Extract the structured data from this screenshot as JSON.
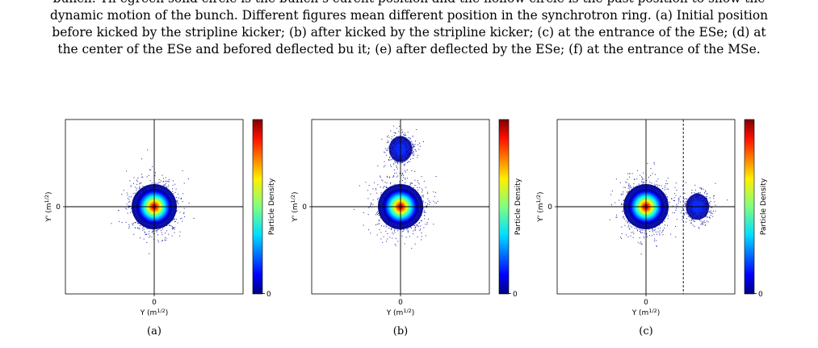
{
  "caption": {
    "lines": [
      "bunch. Th egreen solid circle is the bunch’s curent position and the hollow circle is the past position to show the",
      "dynamic motion of the bunch. Different figures mean different position in the synchrotron ring. (a) Initial position",
      "before kicked by the stripline kicker; (b) after kicked by the stripline kicker; (c) at the entrance of the ESe; (d) at",
      "the center of the ESe and befored deflected bu it; (e) after deflected by the ESe; (f) at the entrance of the MSe."
    ]
  },
  "panels": [
    {
      "label": "(a)",
      "x_label": "Y (m",
      "y_label": "Y' (m",
      "unit_sup": "1/2",
      "x_tick": "0",
      "y_tick": "0",
      "colorbar_label": "Particle Density",
      "colorbar_tick": "0",
      "bunches": [
        {
          "x": 0.0,
          "y": 0.0,
          "spread": 1.0
        }
      ],
      "septum_line": null
    },
    {
      "label": "(b)",
      "x_label": "Y (m",
      "y_label": "Y' (m",
      "unit_sup": "1/2",
      "x_tick": "0",
      "y_tick": "0",
      "colorbar_label": "Particle Density",
      "colorbar_tick": "0",
      "bunches": [
        {
          "x": 0.0,
          "y": 0.0,
          "spread": 1.0
        },
        {
          "x": 0.0,
          "y": 0.66,
          "spread": 0.55
        }
      ],
      "septum_line": null
    },
    {
      "label": "(c)",
      "x_label": "Y (m",
      "y_label": "Y' (m",
      "unit_sup": "1/2",
      "x_tick": "0",
      "y_tick": "0",
      "colorbar_label": "Particle Density",
      "colorbar_tick": "0",
      "bunches": [
        {
          "x": 0.0,
          "y": 0.0,
          "spread": 1.0
        },
        {
          "x": 0.58,
          "y": 0.0,
          "spread": 0.55
        }
      ],
      "septum_line": 0.42
    }
  ],
  "colors": {
    "colormap": [
      "#00007f",
      "#0000ff",
      "#007fff",
      "#00ffff",
      "#7fff7f",
      "#ffff00",
      "#ff7f00",
      "#ff0000",
      "#7f0000"
    ],
    "axis": "#000000",
    "scatter": "#1a1a9e"
  }
}
